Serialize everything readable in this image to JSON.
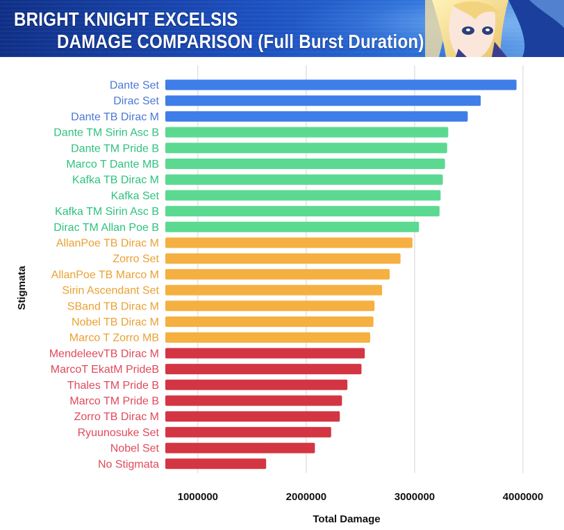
{
  "header": {
    "title_line1": "BRIGHT KNIGHT EXCELSIS",
    "title_line2": "DAMAGE COMPARISON (Full Burst Duration)"
  },
  "colors": {
    "blue": "#3f7ee8",
    "green": "#5cd991",
    "orange": "#f5b041",
    "red": "#d33642",
    "label_blue": "#4a78d8",
    "label_green": "#2ec27e",
    "label_orange": "#eaa132",
    "label_red": "#e04a5a",
    "grid": "#d4d4d4"
  },
  "chart_data": {
    "type": "bar",
    "orientation": "horizontal",
    "xlabel": "Total Damage",
    "ylabel": "Stigmata",
    "xlim": [
      700000,
      4000000
    ],
    "xticks": [
      1000000,
      2000000,
      3000000,
      4000000
    ],
    "xtick_labels": [
      "1000000",
      "2000000",
      "3000000",
      "4000000"
    ],
    "grid": true,
    "categories": [
      "Dante Set",
      "Dirac Set",
      "Dante TB Dirac M",
      "Dante TM Sirin Asc B",
      "Dante TM Pride B",
      "Marco T Dante MB",
      "Kafka TB Dirac M",
      "Kafka Set",
      "Kafka TM Sirin Asc B",
      "Dirac TM Allan Poe B",
      "AllanPoe TB Dirac M",
      "Zorro Set",
      "AllanPoe TB Marco M",
      "Sirin Ascendant Set",
      "SBand TB Dirac M",
      "Nobel TB Dirac M",
      "Marco T Zorro MB",
      "MendeleevTB Dirac M",
      "MarcoT EkatM PrideB",
      "Thales TM Pride B",
      "Marco TM Pride B",
      "Zorro TB Dirac M",
      "Ryuunosuke Set",
      "Nobel Set",
      "No Stigmata"
    ],
    "values": [
      3940000,
      3610000,
      3490000,
      3310000,
      3300000,
      3280000,
      3260000,
      3240000,
      3230000,
      3040000,
      2980000,
      2870000,
      2770000,
      2700000,
      2630000,
      2620000,
      2590000,
      2540000,
      2510000,
      2380000,
      2330000,
      2310000,
      2230000,
      2080000,
      1630000
    ],
    "groups": [
      "blue",
      "blue",
      "blue",
      "green",
      "green",
      "green",
      "green",
      "green",
      "green",
      "green",
      "orange",
      "orange",
      "orange",
      "orange",
      "orange",
      "orange",
      "orange",
      "red",
      "red",
      "red",
      "red",
      "red",
      "red",
      "red",
      "red"
    ]
  }
}
